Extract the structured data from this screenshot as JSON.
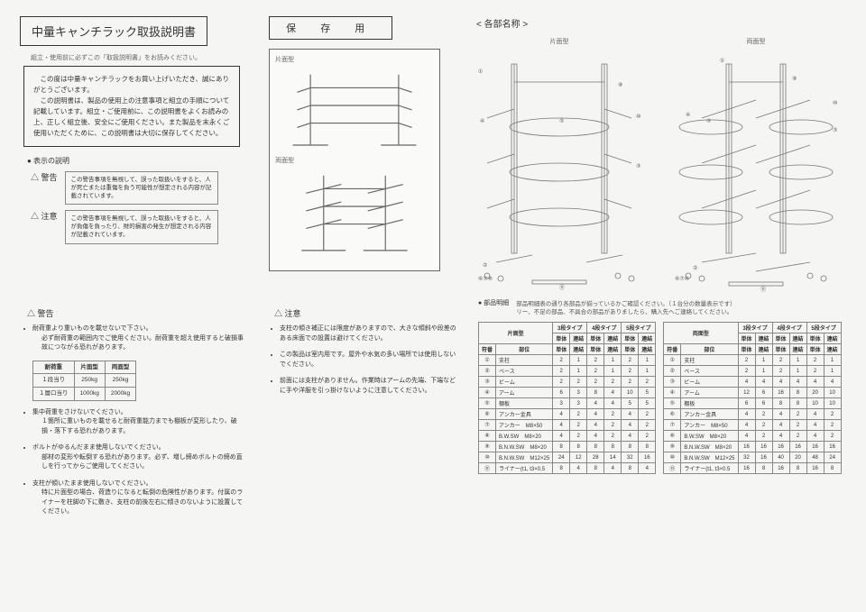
{
  "title": "中量キャンチラック取扱説明書",
  "save_label": "保 存 用",
  "parts_header": "< 各部名称 >",
  "intro_note": "組立・使用前に必ずこの「取扱説明書」をお読みください。",
  "intro_box": "　この度は中量キャンチラックをお買い上げいただき、誠にありがとうございます。\n　この説明書は、製品の使用上の注意事項と組立の手順について記載しています。組立・ご使用前に、この説明書をよくお読みの上、正しく組立後、安全にご使用ください。また製品を末永くご使用いただくために、この説明書は大切に保存してください。",
  "warn_section_label": "● 表示の説明",
  "warn1_label": "△ 警告",
  "warn1_text": "この警告事項を無視して、誤った取扱いをすると、人が死亡または重傷を負う可能性が想定される内容が記載されています。",
  "warn2_label": "△ 注意",
  "warn2_text": "この警告事項を無視して、誤った取扱いをすると、人が負傷を負ったり、財的損害の発生が想定される内容が記載されています。",
  "diagram_labels": {
    "single": "片面型",
    "double": "両面型"
  },
  "warning_head": "△ 警告",
  "warning_bullets": [
    {
      "main": "耐荷重より重いものを載せないで下さい。",
      "sub": "必ず耐荷重の範囲内でご使用ください。耐荷重を超え使用すると破損事故につながる恐れがあります。"
    },
    {
      "main": "集中荷重をさけないでください。",
      "sub": "１箇所に重いものを載せると耐荷重能力までも棚板が変形したり、破損・落下する恐れがあります。"
    },
    {
      "main": "ボルトがゆるんだまま使用しないでください。",
      "sub": "部材の変形や転倒する恐れがあります。必ず、増し締めボルトの締め直しを行ってからご使用してください。"
    },
    {
      "main": "支柱が傾いたまま使用しないでください。",
      "sub": "特に片面型の場合、荷造りになると転倒の危険性があります。付属のライナーを柱脚の下に敷き、支柱の前後左右に傾きのないように設置してください。"
    }
  ],
  "load_table": {
    "headers": [
      "耐荷重",
      "片面型",
      "両面型"
    ],
    "rows": [
      [
        "１段当り",
        "250kg",
        "250kg"
      ],
      [
        "１層口当り",
        "1000kg",
        "2000kg"
      ]
    ]
  },
  "caution_head": "△ 注意",
  "caution_bullets": [
    {
      "main": "支柱の傾き補正には限度がありますので、大きな傾斜や段差のある床面での設置は避けてください。"
    },
    {
      "main": "この製品は室内用です。屋外や水気の多い場所では使用しないでください。"
    },
    {
      "main": "前面には支柱がありません。作業時はアームの先端、下端などに手や洋服を引っ掛けないように注意してください。"
    }
  ],
  "parts_note_label": "● 部品明細",
  "parts_note": "部品明細表の通り各部品が揃っているかご確認ください。（１台分の数量表示です）\nリー、不足の部品、不具合の部品がありましたら、購入先へご連絡してください。",
  "parts_table_single": {
    "title": "片面型",
    "type_cols": [
      "3段タイプ",
      "4段タイプ",
      "5段タイプ"
    ],
    "sub_cols": [
      "単体",
      "連結"
    ],
    "rows": [
      {
        "n": "①",
        "name": "支柱",
        "v": [
          2,
          1,
          2,
          1,
          2,
          1
        ]
      },
      {
        "n": "②",
        "name": "ベース",
        "v": [
          2,
          1,
          2,
          1,
          2,
          1
        ]
      },
      {
        "n": "③",
        "name": "ビーム",
        "v": [
          2,
          2,
          2,
          2,
          2,
          2
        ]
      },
      {
        "n": "④",
        "name": "アーム",
        "v": [
          6,
          3,
          8,
          4,
          10,
          5
        ]
      },
      {
        "n": "⑤",
        "name": "棚板",
        "v": [
          3,
          3,
          4,
          4,
          5,
          5
        ]
      },
      {
        "n": "⑥",
        "name": "アンカー金具",
        "v": [
          4,
          2,
          4,
          2,
          4,
          2
        ]
      },
      {
        "n": "⑦",
        "name": "アンカー　M8×50",
        "v": [
          4,
          2,
          4,
          2,
          4,
          2
        ]
      },
      {
        "n": "⑧",
        "name": "B.W.SW　M8×20",
        "v": [
          4,
          2,
          4,
          2,
          4,
          2
        ]
      },
      {
        "n": "⑨",
        "name": "B.N.W.SW　M8×20",
        "v": [
          8,
          8,
          8,
          8,
          8,
          8
        ]
      },
      {
        "n": "⑩",
        "name": "B.N.W.SW　M12×25",
        "v": [
          24,
          12,
          28,
          14,
          32,
          16
        ]
      },
      {
        "n": "⑪",
        "name": "ライナー(t1, t3×0.5",
        "v": [
          8,
          4,
          8,
          4,
          8,
          4
        ]
      }
    ]
  },
  "parts_table_double": {
    "title": "両面型",
    "type_cols": [
      "3段タイプ",
      "4段タイプ",
      "5段タイプ"
    ],
    "sub_cols": [
      "単体",
      "連結"
    ],
    "rows": [
      {
        "n": "①",
        "name": "支柱",
        "v": [
          2,
          1,
          2,
          1,
          2,
          1
        ]
      },
      {
        "n": "②",
        "name": "ベース",
        "v": [
          2,
          1,
          2,
          1,
          2,
          1
        ]
      },
      {
        "n": "③",
        "name": "ビーム",
        "v": [
          4,
          4,
          4,
          4,
          4,
          4
        ]
      },
      {
        "n": "④",
        "name": "アーム",
        "v": [
          12,
          6,
          16,
          8,
          20,
          10
        ]
      },
      {
        "n": "⑤",
        "name": "棚板",
        "v": [
          6,
          6,
          8,
          8,
          10,
          10
        ]
      },
      {
        "n": "⑥",
        "name": "アンカー金具",
        "v": [
          4,
          2,
          4,
          2,
          4,
          2
        ]
      },
      {
        "n": "⑦",
        "name": "アンカー　M8×50",
        "v": [
          4,
          2,
          4,
          2,
          4,
          2
        ]
      },
      {
        "n": "⑧",
        "name": "B.W.SW　M8×20",
        "v": [
          4,
          2,
          4,
          2,
          4,
          2
        ]
      },
      {
        "n": "⑨",
        "name": "B.N.W.SW　M8×20",
        "v": [
          16,
          16,
          16,
          16,
          16,
          16
        ]
      },
      {
        "n": "⑩",
        "name": "B.N.W.SW　M12×25",
        "v": [
          32,
          16,
          40,
          20,
          48,
          24
        ]
      },
      {
        "n": "⑪",
        "name": "ライナー(t1, t3×0.5",
        "v": [
          16,
          8,
          16,
          8,
          16,
          8
        ]
      }
    ]
  }
}
